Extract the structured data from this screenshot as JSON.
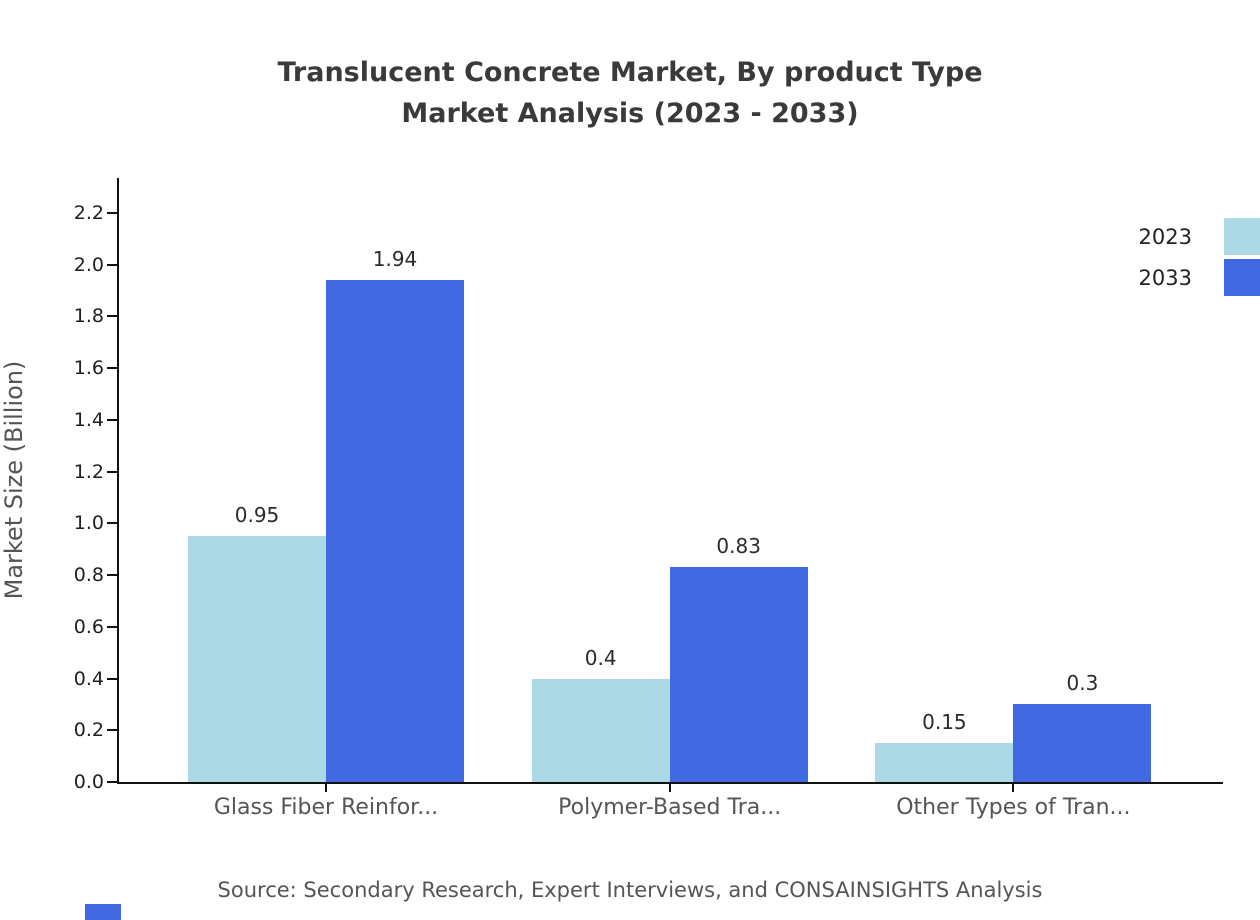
{
  "title": {
    "line1": "Translucent Concrete Market, By product Type",
    "line2": "Market Analysis (2023 - 2033)"
  },
  "source": "Source: Secondary Research, Expert Interviews, and CONSAINSIGHTS Analysis",
  "legend": [
    {
      "label": "2023",
      "color": "#add8e6"
    },
    {
      "label": "2033",
      "color": "#4169e1"
    }
  ],
  "colors": {
    "series_2023": "#add8e6",
    "series_2033": "#4169e1",
    "axis": "#111111",
    "title_text": "#3a3a3a",
    "muted_text": "#555555"
  },
  "chart_data": {
    "type": "bar",
    "title": "Translucent Concrete Market, By product Type Market Analysis (2023 - 2033)",
    "categories": [
      "Glass Fiber Reinfor...",
      "Polymer-Based Tra...",
      "Other Types of Tran..."
    ],
    "series": [
      {
        "name": "2023",
        "color": "#add8e6",
        "values": [
          0.95,
          0.4,
          0.15
        ]
      },
      {
        "name": "2033",
        "color": "#4169e1",
        "values": [
          1.94,
          0.83,
          0.3
        ]
      }
    ],
    "xlabel": "",
    "ylabel": "Market Size (Billion)",
    "ylim": [
      0,
      2.2
    ],
    "ytick_step": 0.2,
    "grid": false,
    "legend_position": "top-right",
    "value_labels": true
  }
}
